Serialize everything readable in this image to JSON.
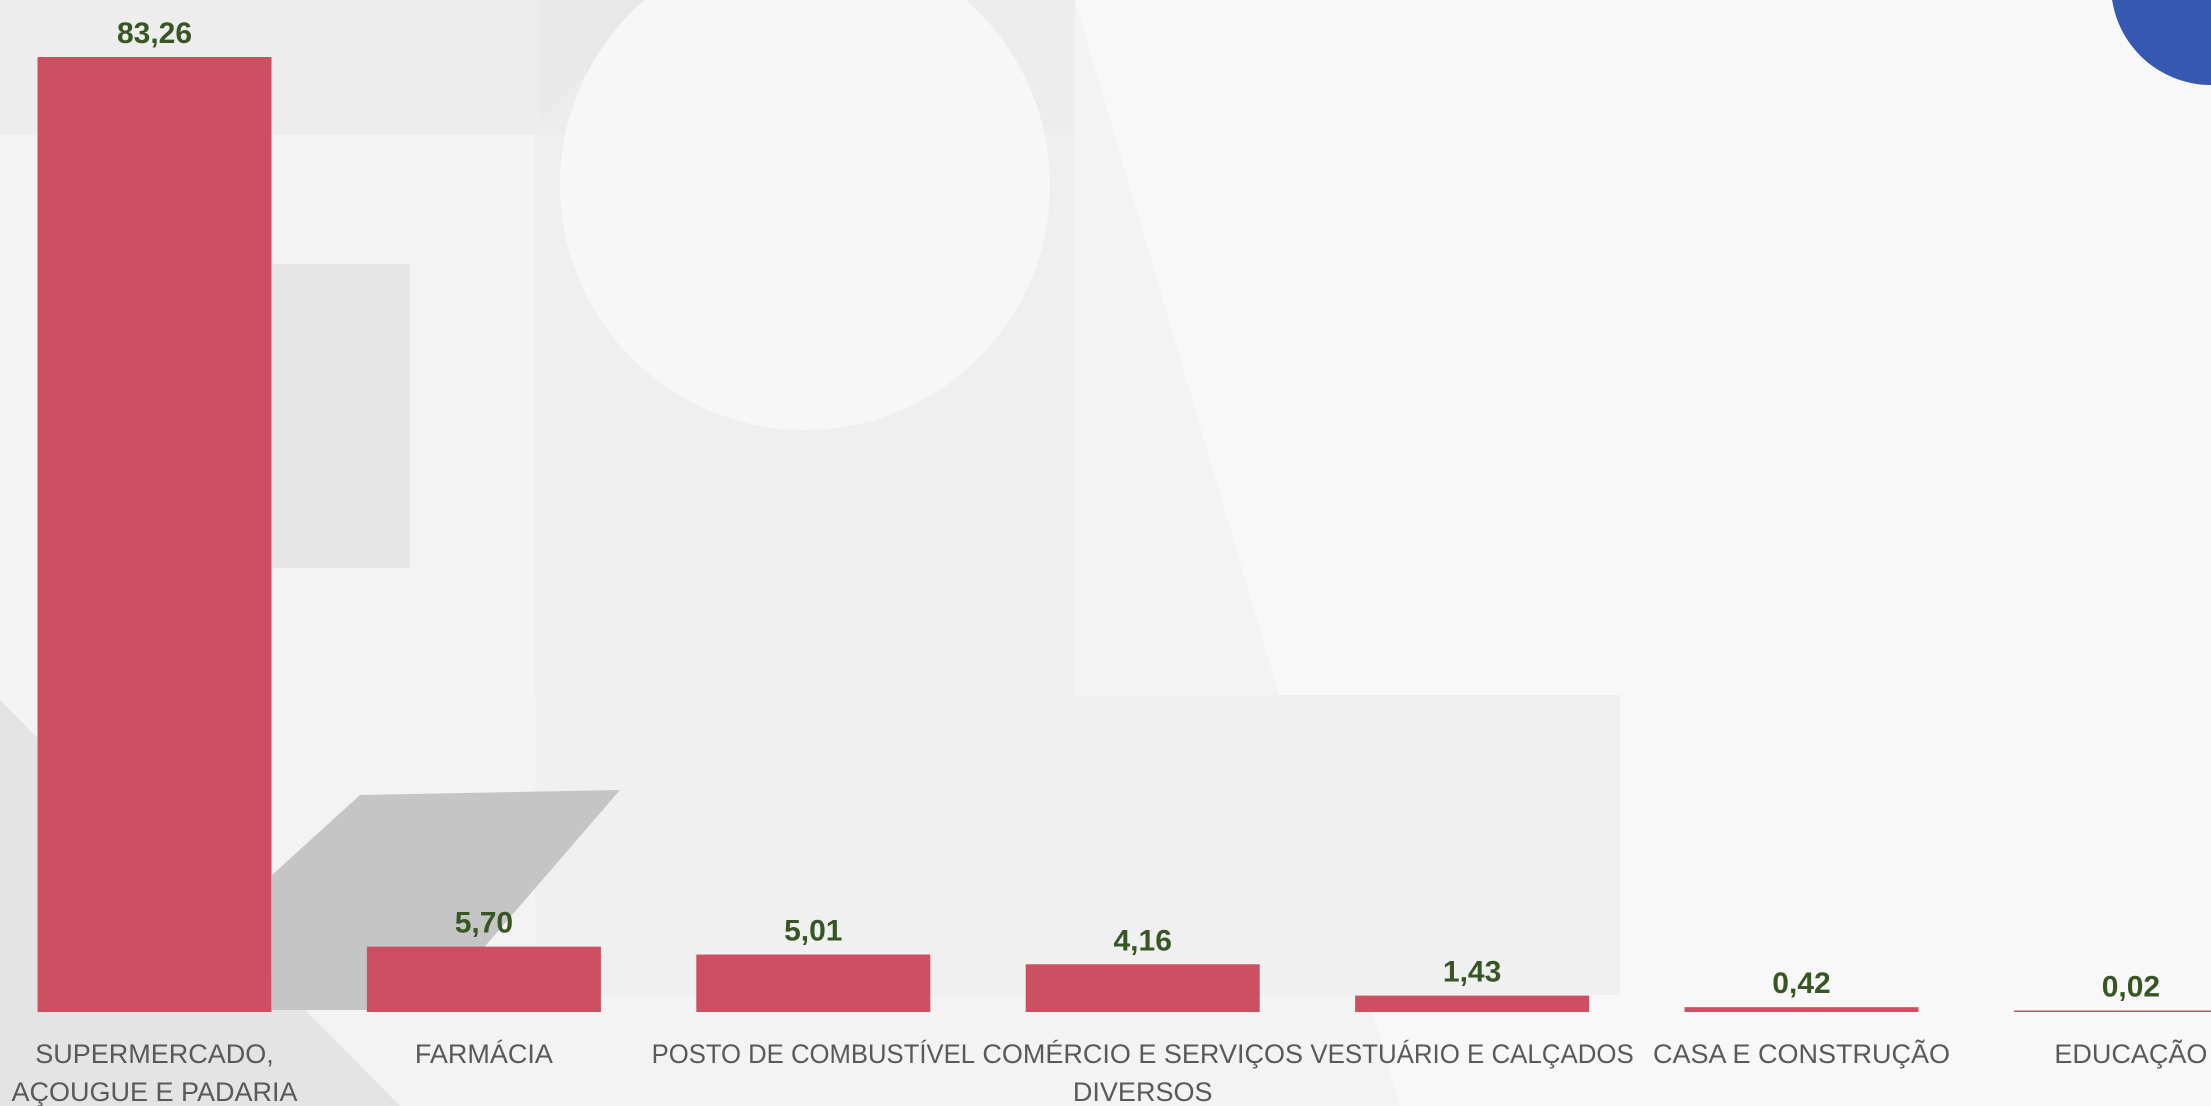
{
  "chart_data": {
    "type": "bar",
    "categories": [
      [
        "SUPERMERCADO,",
        "AÇOUGUE E PADARIA"
      ],
      [
        "FARMÁCIA"
      ],
      [
        "POSTO DE COMBUSTÍVEL"
      ],
      [
        "COMÉRCIO E SERVIÇOS",
        "DIVERSOS"
      ],
      [
        "VESTUÁRIO E CALÇADOS"
      ],
      [
        "CASA E CONSTRUÇÃO"
      ],
      [
        "EDUCAÇÃO"
      ]
    ],
    "values": [
      83.26,
      5.7,
      5.01,
      4.16,
      1.43,
      0.42,
      0.02
    ],
    "value_labels": [
      "83,26",
      "5,70",
      "5,01",
      "4,16",
      "1,43",
      "0,42",
      "0,02"
    ],
    "title": "",
    "xlabel": "",
    "ylabel": "",
    "ylim": [
      0,
      83.26
    ],
    "grid": false,
    "legend": "none"
  },
  "colors": {
    "bar": "#cd4f62",
    "value_label": "#375623",
    "category_label": "#595959",
    "accent_circle": "#3559b0"
  }
}
